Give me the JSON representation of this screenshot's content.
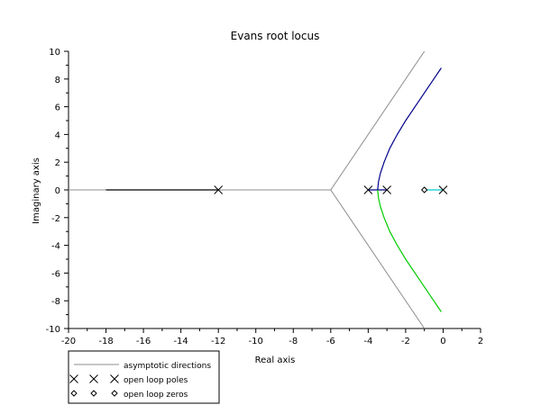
{
  "chart_data": {
    "type": "line",
    "title": "Evans root locus",
    "xlabel": "Real axis",
    "ylabel": "Imaginary axis",
    "xlim": [
      -20,
      2
    ],
    "ylim": [
      -10,
      10
    ],
    "x_ticks": [
      -20,
      -18,
      -16,
      -14,
      -12,
      -10,
      -8,
      -6,
      -4,
      -2,
      0,
      2
    ],
    "y_ticks": [
      -10,
      -8,
      -6,
      -4,
      -2,
      0,
      2,
      4,
      6,
      8,
      10
    ],
    "grid": false,
    "legend_position": "bottom-left",
    "legend": {
      "asymptotes_label": "asymptotic directions",
      "poles_label": "open loop poles",
      "zeros_label": "open loop zeros"
    },
    "asymptotes": {
      "color": "#8c8c8c",
      "lines": [
        [
          [
            -6,
            0
          ],
          [
            -1,
            10
          ]
        ],
        [
          [
            -6,
            0
          ],
          [
            -1,
            -10
          ]
        ],
        [
          [
            -20,
            0
          ],
          [
            -6,
            0
          ]
        ]
      ]
    },
    "poles": [
      [
        -12,
        0
      ],
      [
        -4,
        0
      ],
      [
        -3,
        0
      ],
      [
        0,
        0
      ]
    ],
    "zeros": [
      [
        -1,
        0
      ]
    ],
    "series": [
      {
        "color": "#000000",
        "points": [
          [
            -12,
            0
          ],
          [
            -18,
            0
          ]
        ]
      },
      {
        "color": "#00cccc",
        "points": [
          [
            0,
            0
          ],
          [
            -1,
            0
          ]
        ]
      },
      {
        "color": "#00008b",
        "points": [
          [
            -4,
            0
          ],
          [
            -3.5,
            0
          ],
          [
            -3,
            0
          ],
          [
            -3.5,
            0
          ],
          [
            -3.45,
            0.6
          ],
          [
            -3.35,
            1.2
          ],
          [
            -3.15,
            2
          ],
          [
            -2.85,
            3
          ],
          [
            -2.45,
            4
          ],
          [
            -2,
            5
          ],
          [
            -1.5,
            6
          ],
          [
            -1,
            7
          ],
          [
            -0.5,
            8
          ],
          [
            -0.1,
            8.8
          ]
        ]
      },
      {
        "color": "#00cc00",
        "points": [
          [
            -3.5,
            0
          ],
          [
            -3.45,
            -0.6
          ],
          [
            -3.35,
            -1.2
          ],
          [
            -3.15,
            -2
          ],
          [
            -2.85,
            -3
          ],
          [
            -2.45,
            -4
          ],
          [
            -2,
            -5
          ],
          [
            -1.5,
            -6
          ],
          [
            -1,
            -7
          ],
          [
            -0.5,
            -8
          ],
          [
            -0.1,
            -8.8
          ]
        ]
      }
    ]
  }
}
